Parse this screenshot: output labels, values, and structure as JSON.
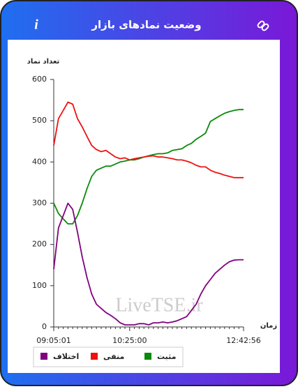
{
  "header": {
    "title": "وضعیت نمادهای بازار",
    "info": "i"
  },
  "watermark": "LiveTSE.ir",
  "chart_data": {
    "type": "line",
    "y_label": "تعداد نماد",
    "x_label": "زمان",
    "categories": [
      "09:05:01",
      null,
      null,
      null,
      null,
      null,
      null,
      null,
      null,
      null,
      null,
      null,
      null,
      null,
      null,
      null,
      "10:25:00",
      null,
      null,
      null,
      null,
      null,
      null,
      null,
      null,
      null,
      null,
      null,
      null,
      null,
      null,
      null,
      null,
      null,
      null,
      null,
      null,
      null,
      null,
      null,
      "12:42:56"
    ],
    "series": [
      {
        "name": "مثبت",
        "color": "#0a8a0a",
        "values": [
          300,
          275,
          262,
          250,
          250,
          270,
          300,
          335,
          365,
          380,
          385,
          390,
          390,
          395,
          400,
          402,
          405,
          405,
          408,
          412,
          415,
          418,
          420,
          420,
          422,
          428,
          430,
          432,
          440,
          445,
          455,
          462,
          470,
          498,
          505,
          512,
          518,
          522,
          525,
          527,
          527
        ]
      },
      {
        "name": "منفی",
        "color": "#f01010",
        "values": [
          440,
          505,
          525,
          545,
          540,
          505,
          485,
          462,
          440,
          430,
          425,
          428,
          420,
          412,
          408,
          410,
          405,
          408,
          410,
          412,
          414,
          415,
          412,
          412,
          410,
          408,
          405,
          405,
          402,
          398,
          392,
          388,
          388,
          380,
          375,
          372,
          368,
          365,
          362,
          362,
          362
        ]
      },
      {
        "name": "اختلاف",
        "color": "#800080",
        "values": [
          140,
          240,
          270,
          300,
          285,
          230,
          170,
          120,
          80,
          55,
          45,
          35,
          28,
          20,
          10,
          5,
          5,
          5,
          8,
          8,
          5,
          10,
          10,
          12,
          10,
          12,
          15,
          20,
          25,
          40,
          55,
          80,
          100,
          115,
          130,
          140,
          150,
          158,
          162,
          163,
          163
        ]
      }
    ],
    "ylim": [
      0,
      600
    ],
    "yticks": [
      0,
      100,
      200,
      300,
      400,
      500,
      600
    ],
    "grid": false
  }
}
